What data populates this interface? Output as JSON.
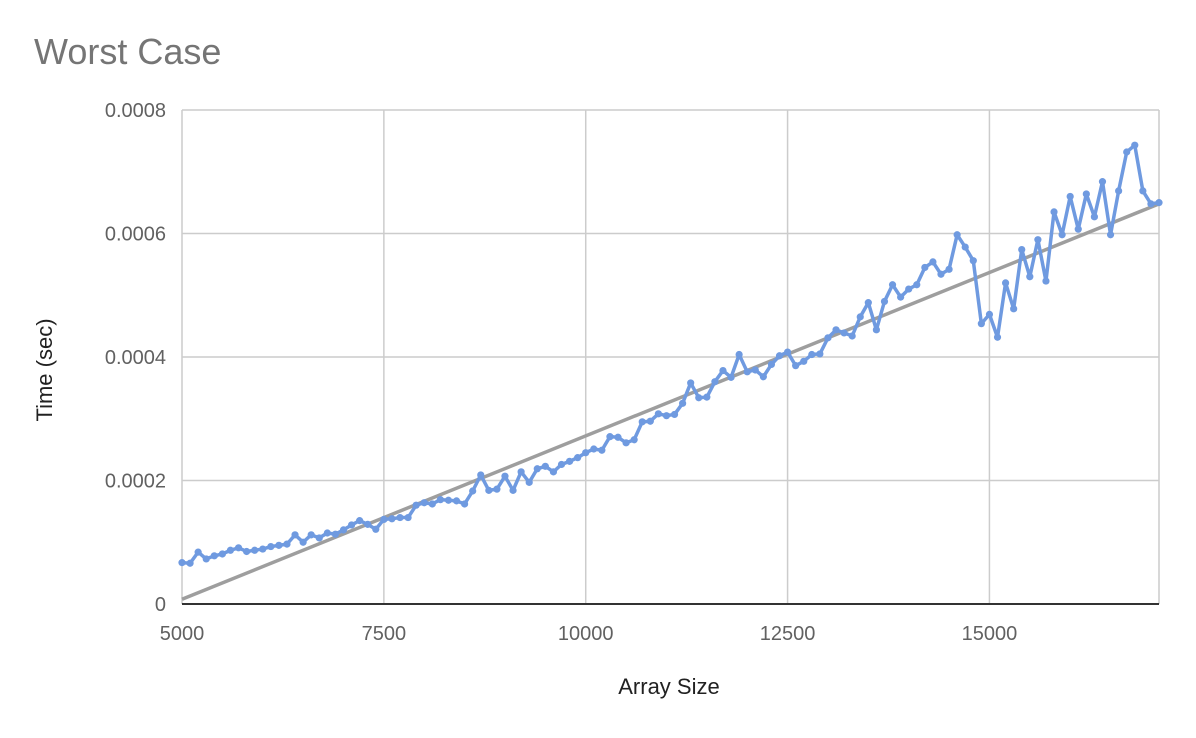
{
  "chart_data": {
    "type": "line",
    "title": "Worst Case",
    "xlabel": "Array Size",
    "ylabel": "Time (sec)",
    "xlim": [
      5000,
      17100
    ],
    "ylim": [
      0,
      0.0008
    ],
    "x_ticks": [
      5000,
      7500,
      10000,
      12500,
      15000
    ],
    "x_tick_labels": [
      "5000",
      "7500",
      "10000",
      "12500",
      "15000"
    ],
    "y_ticks": [
      0,
      0.0002,
      0.0004,
      0.0006,
      0.0008
    ],
    "y_tick_labels": [
      "0",
      "0.0002",
      "0.0004",
      "0.0006",
      "0.0008"
    ],
    "grid": true,
    "legend": "none",
    "colors": {
      "series": "#6f9ae0",
      "trendline": "#9e9e9e",
      "grid": "#cccccc",
      "baseline": "#333333"
    },
    "series": [
      {
        "x": [
          5000,
          5100,
          5200,
          5300,
          5400,
          5500,
          5600,
          5700,
          5800,
          5900,
          6000,
          6100,
          6200,
          6300,
          6400,
          6500,
          6600,
          6700,
          6800,
          6900,
          7000,
          7100,
          7200,
          7300,
          7400,
          7500,
          7600,
          7700,
          7800,
          7900,
          8000,
          8100,
          8200,
          8300,
          8400,
          8500,
          8600,
          8700,
          8800,
          8900,
          9000,
          9100,
          9200,
          9300,
          9400,
          9500,
          9600,
          9700,
          9800,
          9900,
          10000,
          10100,
          10200,
          10300,
          10400,
          10500,
          10600,
          10700,
          10800,
          10900,
          11000,
          11100,
          11200,
          11300,
          11400,
          11500,
          11600,
          11700,
          11800,
          11900,
          12000,
          12100,
          12200,
          12300,
          12400,
          12500,
          12600,
          12700,
          12800,
          12900,
          13000,
          13100,
          13200,
          13300,
          13400,
          13500,
          13600,
          13700,
          13800,
          13900,
          14000,
          14100,
          14200,
          14300,
          14400,
          14500,
          14600,
          14700,
          14800,
          14900,
          15000,
          15100,
          15200,
          15300,
          15400,
          15500,
          15600,
          15700,
          15800,
          15900,
          16000,
          16100,
          16200,
          16300,
          16400,
          16500,
          16600,
          16700,
          16800,
          16900,
          17000,
          17100
        ],
        "values": [
          6.7e-05,
          6.6e-05,
          8.4e-05,
          7.3e-05,
          7.8e-05,
          8.1e-05,
          8.7e-05,
          9.1e-05,
          8.5e-05,
          8.7e-05,
          8.9e-05,
          9.3e-05,
          9.5e-05,
          9.7e-05,
          0.000112,
          0.0001,
          0.000112,
          0.000107,
          0.000115,
          0.000113,
          0.00012,
          0.000128,
          0.000135,
          0.000129,
          0.000121,
          0.000137,
          0.000138,
          0.00014,
          0.00014,
          0.00016,
          0.000164,
          0.000162,
          0.000169,
          0.000168,
          0.000167,
          0.000162,
          0.000183,
          0.000209,
          0.000184,
          0.000186,
          0.000207,
          0.000184,
          0.000214,
          0.000197,
          0.000219,
          0.000223,
          0.000214,
          0.000226,
          0.000231,
          0.000237,
          0.000245,
          0.000251,
          0.000249,
          0.000271,
          0.00027,
          0.000261,
          0.000266,
          0.000295,
          0.000296,
          0.000308,
          0.000305,
          0.000307,
          0.000325,
          0.000358,
          0.000334,
          0.000335,
          0.00036,
          0.000378,
          0.000367,
          0.000404,
          0.000376,
          0.000379,
          0.000368,
          0.000388,
          0.000402,
          0.000408,
          0.000386,
          0.000393,
          0.000404,
          0.000405,
          0.000431,
          0.000444,
          0.000439,
          0.000434,
          0.000465,
          0.000488,
          0.000444,
          0.00049,
          0.000517,
          0.000497,
          0.00051,
          0.000517,
          0.000545,
          0.000554,
          0.000534,
          0.000542,
          0.000598,
          0.000578,
          0.000556,
          0.000454,
          0.000469,
          0.000432,
          0.00052,
          0.000478,
          0.000574,
          0.00053,
          0.00059,
          0.000523,
          0.000635,
          0.000598,
          0.00066,
          0.000607,
          0.000664,
          0.000627,
          0.000684,
          0.000598,
          0.000669,
          0.000732,
          0.000743,
          0.000669,
          0.000648,
          0.00065
        ]
      }
    ],
    "trendline": {
      "x": [
        5000,
        17100
      ],
      "y": [
        7.6e-06,
        0.000648
      ]
    }
  }
}
